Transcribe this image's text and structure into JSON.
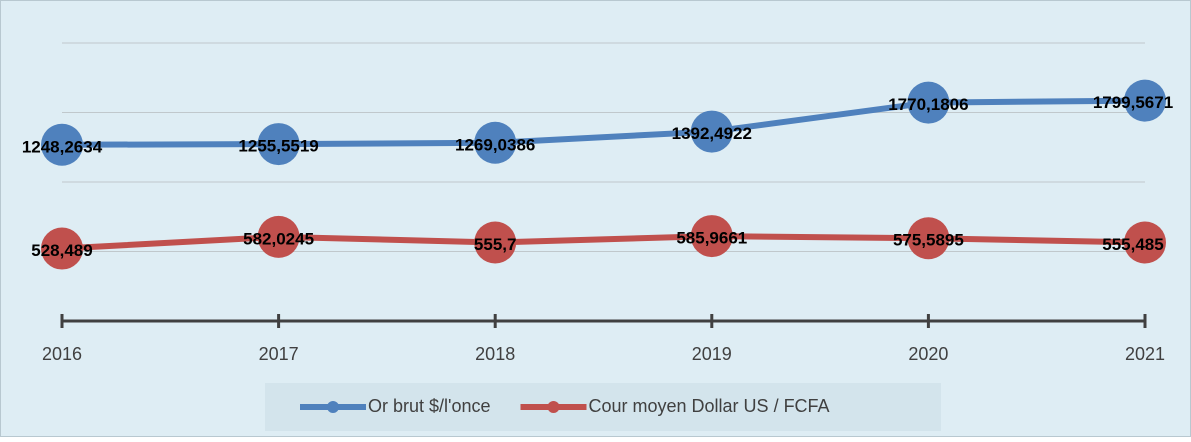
{
  "chart_data": {
    "type": "line",
    "categories": [
      "2016",
      "2017",
      "2018",
      "2019",
      "2020",
      "2021"
    ],
    "series": [
      {
        "name": "Or brut $/l'once",
        "color": "#4f81bd",
        "values": [
          1248.2634,
          1255.5519,
          1269.0386,
          1392.4922,
          1770.1806,
          1799.5671
        ],
        "value_labels": [
          "1248,2634",
          "1255,5519",
          "1269,0386",
          "1392,4922",
          "1770,1806",
          "1799,5671"
        ]
      },
      {
        "name": "Cour moyen Dollar US / FCFA",
        "color": "#c0504d",
        "values": [
          528.489,
          582.0245,
          555.7,
          585.9661,
          575.5895,
          555.485
        ],
        "value_labels": [
          "528,489",
          "582,0245",
          "555,7",
          "585,9661",
          "575,5895",
          "555,485"
        ]
      }
    ],
    "ylim": [
      290,
      2900
    ],
    "log_scale": true,
    "grid": true,
    "legend": "bottom"
  }
}
